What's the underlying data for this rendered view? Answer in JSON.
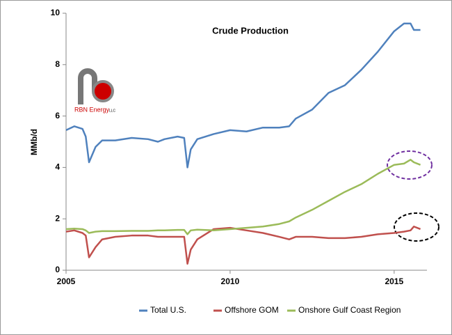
{
  "chart_data": {
    "type": "line",
    "title": "Crude Production",
    "ylabel": "MMb/d",
    "logo": {
      "letters": "rb",
      "text": "RBN Energy",
      "suffix": "LLC"
    },
    "x": [
      2005.0,
      2005.25,
      2005.5,
      2005.6,
      2005.7,
      2005.9,
      2006.1,
      2006.5,
      2007.0,
      2007.5,
      2007.8,
      2008.0,
      2008.4,
      2008.6,
      2008.7,
      2008.8,
      2009.0,
      2009.5,
      2010.0,
      2010.5,
      2011.0,
      2011.5,
      2011.8,
      2012.0,
      2012.5,
      2013.0,
      2013.5,
      2014.0,
      2014.5,
      2015.0,
      2015.3,
      2015.5,
      2015.6,
      2015.8
    ],
    "series": [
      {
        "name": "Total U.S.",
        "color": "#4f81bd",
        "values": [
          5.45,
          5.6,
          5.5,
          5.2,
          4.2,
          4.8,
          5.05,
          5.05,
          5.15,
          5.1,
          5.0,
          5.1,
          5.2,
          5.15,
          4.0,
          4.7,
          5.1,
          5.3,
          5.45,
          5.4,
          5.55,
          5.55,
          5.6,
          5.9,
          6.25,
          6.9,
          7.2,
          7.8,
          8.5,
          9.3,
          9.6,
          9.6,
          9.35,
          9.35
        ]
      },
      {
        "name": "Offshore GOM",
        "color": "#c0504d",
        "values": [
          1.5,
          1.55,
          1.45,
          1.35,
          0.5,
          0.9,
          1.2,
          1.3,
          1.35,
          1.35,
          1.3,
          1.3,
          1.3,
          1.3,
          0.25,
          0.8,
          1.2,
          1.6,
          1.65,
          1.55,
          1.45,
          1.3,
          1.2,
          1.3,
          1.3,
          1.25,
          1.25,
          1.3,
          1.4,
          1.45,
          1.5,
          1.55,
          1.7,
          1.6
        ]
      },
      {
        "name": "Onshore Gulf Coast Region",
        "color": "#9bbb59",
        "values": [
          1.6,
          1.62,
          1.6,
          1.55,
          1.45,
          1.5,
          1.52,
          1.52,
          1.53,
          1.53,
          1.55,
          1.55,
          1.57,
          1.57,
          1.4,
          1.55,
          1.58,
          1.55,
          1.6,
          1.65,
          1.7,
          1.8,
          1.9,
          2.05,
          2.35,
          2.7,
          3.05,
          3.35,
          3.75,
          4.1,
          4.15,
          4.3,
          4.2,
          4.1
        ]
      }
    ],
    "xlim": [
      2005,
      2016
    ],
    "xticks": [
      2005,
      2010,
      2015
    ],
    "ylim": [
      0,
      10
    ],
    "yticks": [
      0,
      2,
      4,
      6,
      8,
      10
    ],
    "legend": "bottom"
  }
}
